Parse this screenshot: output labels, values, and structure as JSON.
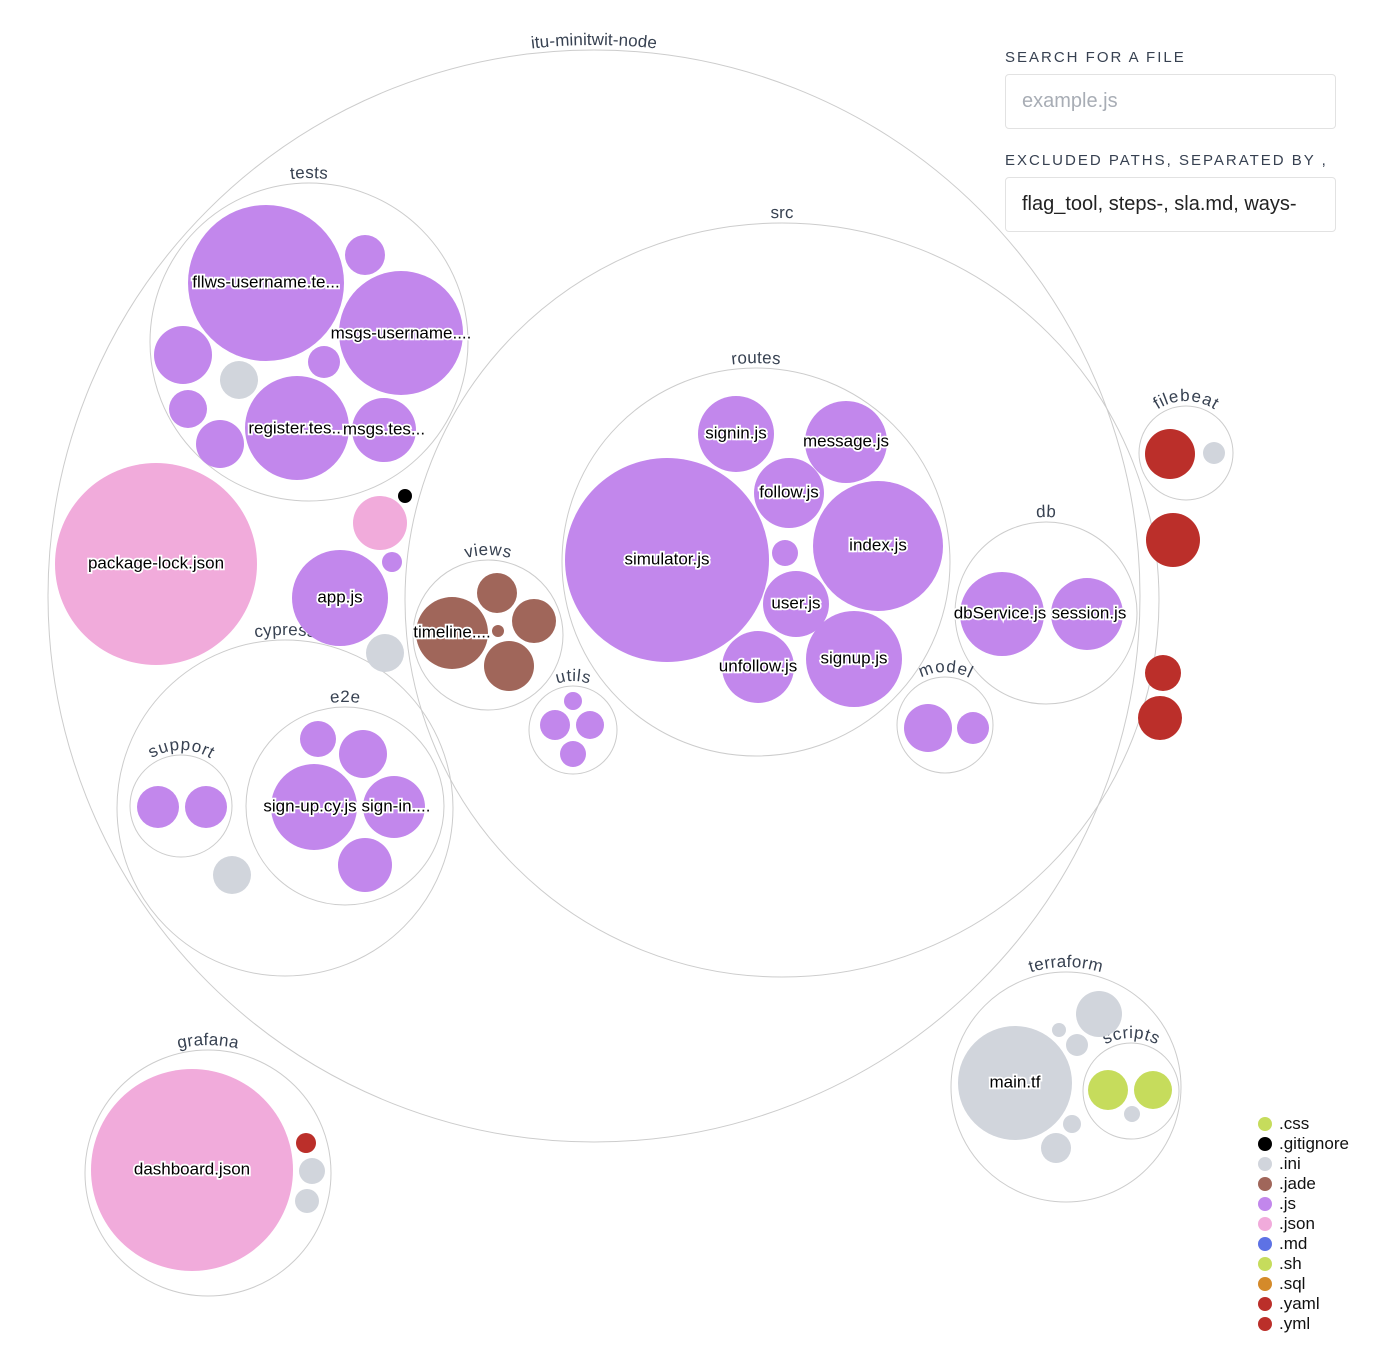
{
  "search": {
    "label": "SEARCH FOR A FILE",
    "placeholder": "example.js",
    "value": ""
  },
  "excluded": {
    "label": "EXCLUDED PATHS, SEPARATED BY ,",
    "value": "flag_tool, steps-, sla.md, ways-"
  },
  "colors": {
    ".css": "#c6dc5c",
    ".gitignore": "#000000",
    ".ini": "#d1d5dc",
    ".jade": "#a0665a",
    ".js": "#c287ec",
    ".json": "#f1abdb",
    ".md": "#5d72e5",
    ".sh": "#c6dc5c",
    ".sql": "#d48a2a",
    ".yaml": "#bb2f2a",
    ".yml": "#bb2f2a"
  },
  "legend": [
    ".css",
    ".gitignore",
    ".ini",
    ".jade",
    ".js",
    ".json",
    ".md",
    ".sh",
    ".sql",
    ".yaml",
    ".yml"
  ],
  "folders": [
    "itu-minitwit-node",
    "tests",
    "src",
    "routes",
    "views",
    "utils",
    "db",
    "model",
    "cypress",
    "support",
    "e2e",
    "filebeat",
    "terraform",
    "scripts",
    "grafana"
  ],
  "file_labels": [
    "fllws-username.te...",
    "msgs-username....",
    "register.tes...",
    "msgs.tes...",
    "package-lock.json",
    "app.js",
    "timeline....",
    "simulator.js",
    "signin.js",
    "message.js",
    "follow.js",
    "index.js",
    "user.js",
    "unfollow.js",
    "signup.js",
    "dbService.js",
    "session.js",
    "sign-up.cy.js",
    "sign-in....",
    "main.tf",
    "dashboard.json"
  ]
}
